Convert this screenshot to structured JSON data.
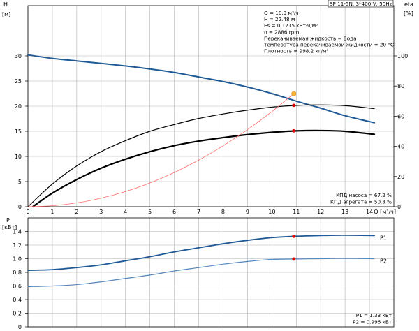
{
  "model_label": "SP 11-5N, 3*400 V, 50Hz",
  "info_lines": [
    "Q = 10.9 м³/ч",
    "H = 22.48 м",
    "Es = 0.1215 кВт·ч/м³",
    "n = 2886 rpm",
    "Перекачиваемая жидкость = Вода",
    "Температура перекачиваемой жидкости = 20 °C",
    "Плотность = 998.2 кг/м³"
  ],
  "eff_lines": [
    "КПД насоса = 67.2 %",
    "КПД агрегата = 50.3 %"
  ],
  "power_lines": [
    "P1 = 1.33 кВт",
    "P2 = 0.996 кВт"
  ],
  "colors": {
    "blue": "#1f5a96",
    "light_blue": "#5586bc",
    "black": "#000000",
    "red": "#ff6a6a",
    "grid": "#b0b0b0",
    "dot": "#e00000",
    "orange": "#f4b033"
  },
  "chart_data": [
    {
      "type": "line",
      "xlabel": "Q [м³/ч]",
      "ylabel": "H [м]",
      "y2label": "eta [%]",
      "xlim": [
        0,
        15
      ],
      "ylim": [
        0,
        40
      ],
      "y2lim": [
        0,
        133.33
      ],
      "xticks": [
        0,
        1,
        2,
        3,
        4,
        5,
        6,
        7,
        8,
        9,
        10,
        11,
        12,
        13,
        14
      ],
      "yticks": [
        0,
        5,
        10,
        15,
        20,
        25,
        30
      ],
      "y2ticks": [
        0,
        20,
        40,
        60,
        80,
        100
      ],
      "grid": true,
      "operating_point": {
        "x": 10.9,
        "H": 22.48,
        "eta_pump": 67.2,
        "eta_unit": 50.3
      },
      "series": [
        {
          "axis": "left",
          "color": "blue",
          "width": 2,
          "x": [
            0,
            1,
            2,
            3,
            4,
            5,
            6,
            7,
            8,
            9,
            10,
            11,
            12,
            13,
            14.2
          ],
          "y": [
            30.2,
            29.5,
            29.0,
            28.5,
            28.0,
            27.4,
            26.7,
            25.8,
            24.9,
            23.8,
            22.5,
            21.0,
            19.6,
            18.1,
            16.7
          ]
        },
        {
          "axis": "right",
          "color": "black",
          "width": 1.2,
          "x": [
            0,
            1,
            2,
            3,
            4,
            5,
            6,
            7,
            8,
            9,
            10,
            11,
            12,
            13,
            14.2
          ],
          "y": [
            0,
            15,
            27,
            36.5,
            43.8,
            50,
            54.5,
            58.5,
            61.5,
            64,
            66,
            67.2,
            67.5,
            67,
            65
          ]
        },
        {
          "axis": "right",
          "color": "black",
          "width": 2.2,
          "x": [
            0.2,
            1,
            2,
            3,
            4,
            5,
            6,
            7,
            8,
            9,
            10,
            11,
            12,
            13,
            14.2
          ],
          "y": [
            0,
            9,
            18,
            25.5,
            31.5,
            36.5,
            40.5,
            43.5,
            45.8,
            47.8,
            49.3,
            50.3,
            50.5,
            50,
            48
          ]
        },
        {
          "axis": "left",
          "color": "red",
          "width": 0.8,
          "x": [
            0,
            1,
            2,
            3,
            4,
            5,
            6,
            7,
            8,
            9,
            10,
            10.9
          ],
          "y": [
            0,
            0.19,
            0.76,
            1.7,
            3.02,
            4.73,
            6.81,
            9.27,
            12.11,
            15.32,
            18.92,
            22.48
          ]
        }
      ]
    },
    {
      "type": "line",
      "xlabel": "Q [м³/ч]",
      "ylabel": "P [кВт]",
      "xlim": [
        0,
        15
      ],
      "ylim": [
        0,
        1.6
      ],
      "yticks": [
        0,
        0.2,
        0.4,
        0.6,
        0.8,
        1.0,
        1.2,
        1.4
      ],
      "ytick_labels": [
        "0",
        "0.2",
        "0.4",
        "0.6",
        "0.8",
        "1.0",
        "1.2",
        "1.4"
      ],
      "grid": true,
      "series": [
        {
          "name": "P1",
          "color": "blue",
          "width": 1.8,
          "x": [
            0,
            1,
            2,
            3,
            4,
            5,
            6,
            7,
            8,
            9,
            10,
            11,
            12,
            13,
            14.2
          ],
          "y": [
            0.83,
            0.84,
            0.87,
            0.91,
            0.97,
            1.03,
            1.1,
            1.16,
            1.22,
            1.27,
            1.31,
            1.33,
            1.34,
            1.345,
            1.34
          ]
        },
        {
          "name": "P2",
          "color": "light_blue",
          "width": 1.2,
          "x": [
            0,
            1,
            2,
            3,
            4,
            5,
            6,
            7,
            8,
            9,
            10,
            11,
            12,
            13,
            14.2
          ],
          "y": [
            0.59,
            0.6,
            0.62,
            0.66,
            0.71,
            0.76,
            0.82,
            0.87,
            0.92,
            0.96,
            0.99,
            0.996,
            1.0,
            1.005,
            1.0
          ]
        }
      ],
      "markers": [
        {
          "x": 10.9,
          "y": 1.33
        },
        {
          "x": 10.9,
          "y": 0.996
        }
      ]
    }
  ]
}
